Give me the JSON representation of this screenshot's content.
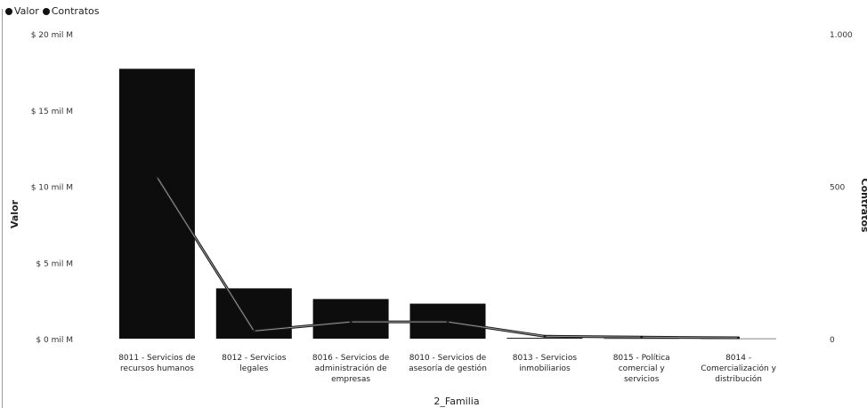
{
  "legend": {
    "items": [
      {
        "label": "Valor",
        "color": "#111111"
      },
      {
        "label": "Contratos",
        "color": "#111111"
      }
    ]
  },
  "chart_data": {
    "type": "bar",
    "subtype": "bar-with-line-secondary-axis",
    "xlabel": "2_Familia",
    "ylabel": "Valor",
    "y2label": "Contratos",
    "grid": false,
    "legend_position": "top-left",
    "categories": [
      [
        "8011 - Servicios de",
        "recursos humanos"
      ],
      [
        "8012 - Servicios",
        "legales"
      ],
      [
        "8016 - Servicios de",
        "administración de",
        "empresas"
      ],
      [
        "8010 - Servicios de",
        "asesoría de gestión"
      ],
      [
        "8013 - Servicios",
        "inmobiliarios"
      ],
      [
        "8015 - Política",
        "comercial y",
        "servicios"
      ],
      [
        "8014 -",
        "Comercialización y",
        "distribución"
      ]
    ],
    "ylim": [
      0,
      20
    ],
    "y2lim": [
      0,
      1000
    ],
    "y_ticks": [
      {
        "value": 0,
        "label": "$ 0 mil M"
      },
      {
        "value": 5,
        "label": "$ 5 mil M"
      },
      {
        "value": 10,
        "label": "$ 10 mil M"
      },
      {
        "value": 15,
        "label": "$ 15 mil M"
      },
      {
        "value": 20,
        "label": "$ 20 mil M"
      }
    ],
    "y2_ticks": [
      {
        "value": 0,
        "label": "0"
      },
      {
        "value": 500,
        "label": "500"
      },
      {
        "value": 1000,
        "label": "1.000"
      }
    ],
    "series": [
      {
        "name": "Valor",
        "kind": "bar",
        "axis": "primary",
        "units": "mil M",
        "color": "#0d0d0d",
        "values": [
          17.7,
          3.3,
          2.6,
          2.3,
          0.05,
          0.02,
          0.01
        ]
      },
      {
        "name": "Contratos",
        "kind": "line",
        "axis": "secondary",
        "color": "#1a1a1a",
        "values": [
          530,
          25,
          55,
          55,
          8,
          5,
          3
        ]
      }
    ]
  }
}
